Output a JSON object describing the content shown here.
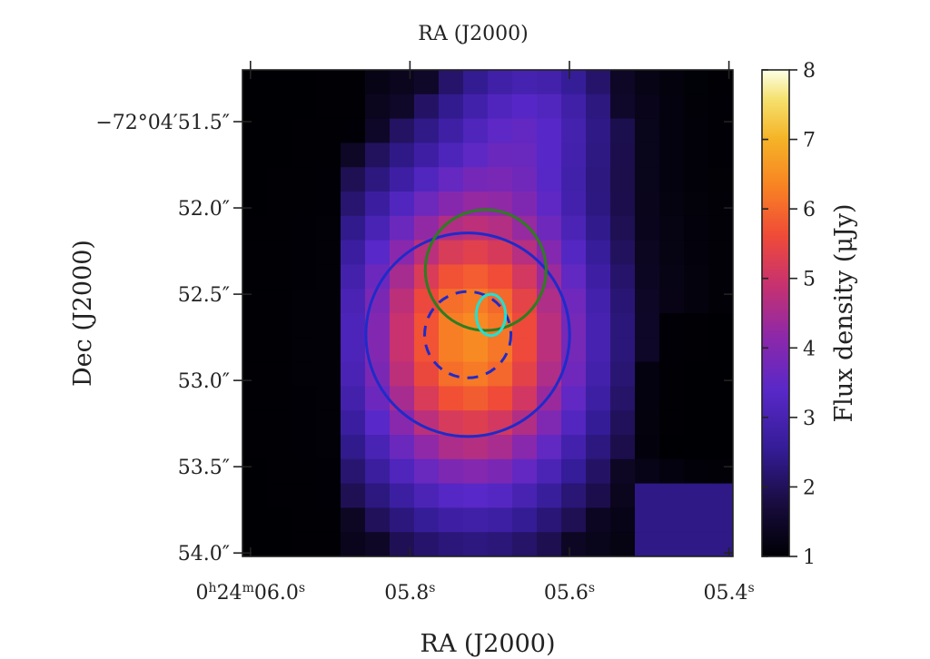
{
  "chart_data": {
    "type": "heatmap",
    "title": "",
    "xlabel": "RA (J2000)",
    "ylabel": "Dec (J2000)",
    "top_xlabel": "RA (J2000)",
    "x_ticks": [
      {
        "value_s": 6.0,
        "label": "0h24m06.0s"
      },
      {
        "value_s": 5.8,
        "label": "05.8s"
      },
      {
        "value_s": 5.6,
        "label": "05.6s"
      },
      {
        "value_s": 5.4,
        "label": "05.4s"
      }
    ],
    "y_ticks": [
      {
        "value_arcsec": 51.5,
        "label": "−72°04′51.5″"
      },
      {
        "value_arcsec": 52.0,
        "label": "52.0″"
      },
      {
        "value_arcsec": 52.5,
        "label": "52.5″"
      },
      {
        "value_arcsec": 53.0,
        "label": "53.0″"
      },
      {
        "value_arcsec": 53.5,
        "label": "53.5″"
      },
      {
        "value_arcsec": 54.0,
        "label": "54.0″"
      }
    ],
    "xlim_s": [
      6.01,
      5.395
    ],
    "ylim_arcsec": [
      51.2,
      54.02
    ],
    "grid": false,
    "colorbar": {
      "label": "Flux density (μJy)",
      "min": 1,
      "max": 8,
      "ticks": [
        1,
        2,
        3,
        4,
        5,
        6,
        7,
        8
      ],
      "colormap": "inferno-like"
    },
    "overlays": [
      {
        "type": "circle",
        "color": "#1f2bc9",
        "style": "solid",
        "center_ra_s": 5.7275,
        "center_dec_arcsec": 52.735,
        "radius_arcsec": 0.59
      },
      {
        "type": "circle",
        "color": "#1f2bc9",
        "style": "dashed",
        "center_ra_s": 5.7275,
        "center_dec_arcsec": 52.735,
        "radius_arcsec": 0.25
      },
      {
        "type": "circle",
        "color": "#2d7d1f",
        "style": "solid",
        "center_ra_s": 5.705,
        "center_dec_arcsec": 52.36,
        "radius_arcsec": 0.35
      },
      {
        "type": "ellipse",
        "color": "#22e0d0",
        "style": "solid",
        "center_ra_s": 5.6985,
        "center_dec_arcsec": 52.62,
        "rx_arcsec": 0.085,
        "ry_arcsec": 0.12
      }
    ]
  }
}
